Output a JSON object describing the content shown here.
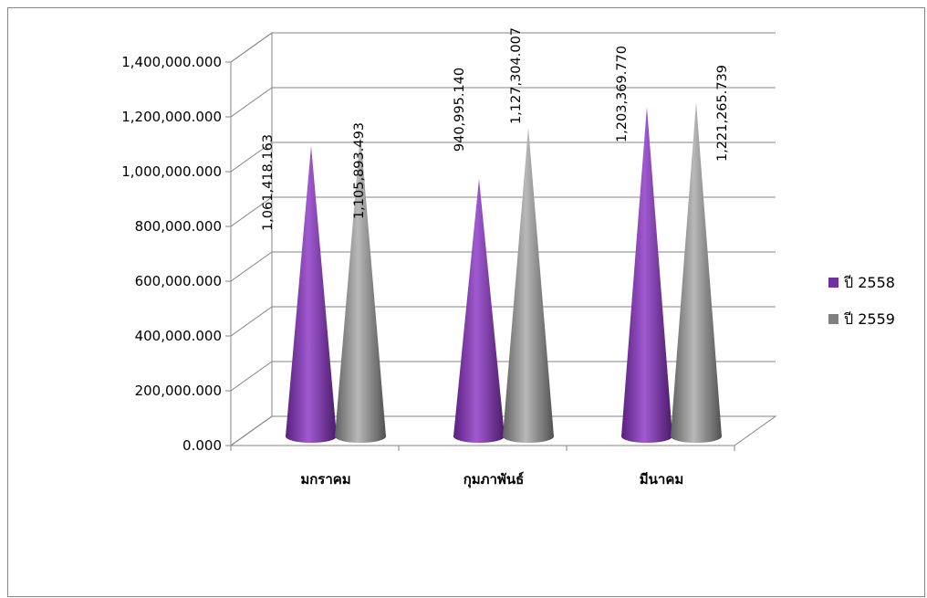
{
  "chart_data": {
    "type": "bar",
    "shape": "cone-3d",
    "title": "",
    "xlabel": "",
    "ylabel": "",
    "categories": [
      "มกราคม",
      "กุมภาพันธ์",
      "มีนาคม"
    ],
    "series": [
      {
        "name": "ปี 2558",
        "color": "#7030A0",
        "values": [
          1061418.163,
          940995.14,
          1203369.77
        ],
        "labels": [
          "1,061,418.163",
          "940,995.140",
          "1,203,369.770"
        ]
      },
      {
        "name": "ปี 2559",
        "color": "#808080",
        "values": [
          1105893.493,
          1127304.007,
          1221265.739
        ],
        "labels": [
          "1,105,893.493",
          "1,127,304.007",
          "1,221,265.739"
        ]
      }
    ],
    "ylim": [
      0,
      1400000
    ],
    "yticks": [
      {
        "value": 0,
        "label": "0.000"
      },
      {
        "value": 200000,
        "label": "200,000.000"
      },
      {
        "value": 400000,
        "label": "400,000.000"
      },
      {
        "value": 600000,
        "label": "600,000.000"
      },
      {
        "value": 800000,
        "label": "800,000.000"
      },
      {
        "value": 1000000,
        "label": "1,000,000.000"
      },
      {
        "value": 1200000,
        "label": "1,200,000.000"
      },
      {
        "value": 1400000,
        "label": "1,400,000.000"
      }
    ],
    "grid": true,
    "legend": "right"
  }
}
